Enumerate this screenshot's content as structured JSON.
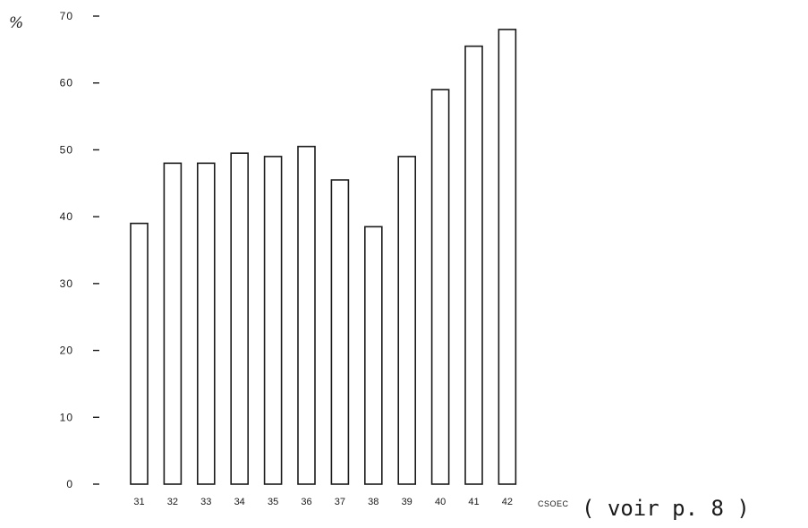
{
  "chart_data": {
    "type": "bar",
    "title": "",
    "ylabel": "%",
    "xlabel": "CSOEC",
    "note": "( voir p. 8 )",
    "ylim": [
      0,
      70
    ],
    "yticks": [
      0,
      10,
      20,
      30,
      40,
      50,
      60,
      70
    ],
    "categories": [
      "31",
      "32",
      "33",
      "34",
      "35",
      "36",
      "37",
      "38",
      "39",
      "40",
      "41",
      "42"
    ],
    "values": [
      39,
      48,
      48,
      49.5,
      49,
      50.5,
      45.5,
      38.5,
      49,
      59,
      65.5,
      68
    ],
    "grid": false,
    "legend": "none",
    "colors": {
      "bar_stroke": "#1a1a1a",
      "bar_fill": "#ffffff",
      "axis": "#1a1a1a"
    }
  }
}
